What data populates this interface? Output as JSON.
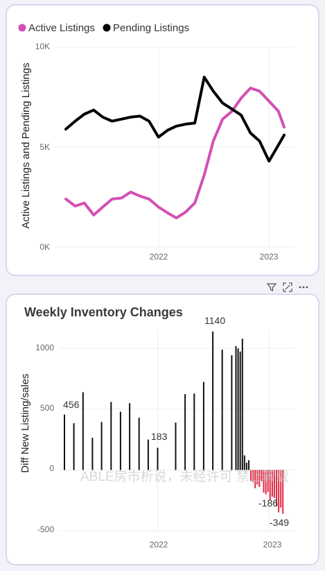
{
  "colors": {
    "active": "#d44fb4",
    "pending": "#000000",
    "positive_bar": "#111111",
    "negative_bar": "#e0273f",
    "grid": "#eeeeee",
    "tick": "#666666"
  },
  "top_chart": {
    "legend": [
      {
        "label": "Active Listings",
        "color": "#d44fb4"
      },
      {
        "label": "Pending Listings",
        "color": "#000000"
      }
    ],
    "ylabel": "Active Listings and Pending Listings",
    "yticks": [
      "0K",
      "5K",
      "10K"
    ],
    "xticks": [
      "2022",
      "2023"
    ]
  },
  "bottom_chart": {
    "title": "Weekly Inventory Changes",
    "ylabel": "Diff New Listing/sales",
    "yticks": [
      "-500",
      "0",
      "500",
      "1000"
    ],
    "xticks": [
      "2022",
      "2023"
    ],
    "data_labels": [
      "456",
      "183",
      "1140",
      "-186",
      "-349"
    ],
    "watermark": "ABLE房市析说，未经许可 禁止转载"
  },
  "toolbar": {
    "icons": [
      "filter-icon",
      "expand-icon",
      "more-options-icon"
    ]
  },
  "chart_data": [
    {
      "type": "line",
      "title": "",
      "xlabel": "",
      "ylabel": "Active Listings and Pending Listings",
      "ylim": [
        0,
        10000
      ],
      "x_axis": "date (weekly), 2021-03 to 2023-02",
      "series": [
        {
          "name": "Active Listings",
          "x": [
            "2021-03-01",
            "2021-04-01",
            "2021-05-01",
            "2021-06-01",
            "2021-07-01",
            "2021-08-01",
            "2021-09-01",
            "2021-10-01",
            "2021-11-01",
            "2021-12-01",
            "2022-01-01",
            "2022-02-01",
            "2022-03-01",
            "2022-04-01",
            "2022-05-01",
            "2022-06-01",
            "2022-07-01",
            "2022-08-01",
            "2022-09-01",
            "2022-10-01",
            "2022-11-01",
            "2022-12-01",
            "2023-01-01",
            "2023-02-01",
            "2023-02-20"
          ],
          "values": [
            2400,
            2050,
            2200,
            1600,
            2000,
            2400,
            2450,
            2750,
            2550,
            2400,
            2000,
            1700,
            1450,
            1750,
            2200,
            3600,
            5300,
            6400,
            6800,
            7450,
            7950,
            7800,
            7300,
            6800,
            6000
          ]
        },
        {
          "name": "Pending Listings",
          "x": [
            "2021-03-01",
            "2021-04-01",
            "2021-05-01",
            "2021-06-01",
            "2021-07-01",
            "2021-08-01",
            "2021-09-01",
            "2021-10-01",
            "2021-11-01",
            "2021-12-01",
            "2022-01-01",
            "2022-02-01",
            "2022-03-01",
            "2022-04-01",
            "2022-05-01",
            "2022-06-01",
            "2022-07-01",
            "2022-08-01",
            "2022-09-01",
            "2022-10-01",
            "2022-11-01",
            "2022-12-01",
            "2023-01-01",
            "2023-02-01",
            "2023-02-20"
          ],
          "values": [
            5900,
            6300,
            6650,
            6850,
            6500,
            6300,
            6400,
            6500,
            6550,
            6300,
            5500,
            5850,
            6050,
            6150,
            6200,
            8500,
            7800,
            7200,
            6900,
            6600,
            5700,
            5300,
            4300,
            5100,
            5600
          ]
        }
      ]
    },
    {
      "type": "bar",
      "title": "Weekly Inventory Changes",
      "xlabel": "",
      "ylabel": "Diff New Listing/sales",
      "ylim": [
        -500,
        1150
      ],
      "x_axis": "date (weekly), 2021-03 to 2023-02",
      "series": [
        {
          "name": "",
          "x": [
            "2021-03-01",
            "2021-04-01",
            "2021-05-01",
            "2021-06-01",
            "2021-07-01",
            "2021-08-01",
            "2021-09-01",
            "2021-10-01",
            "2021-11-01",
            "2021-12-01",
            "2022-01-01",
            "2022-03-01",
            "2022-04-01",
            "2022-05-01",
            "2022-06-01",
            "2022-07-01",
            "2022-08-01",
            "2022-09-01",
            "2022-09-15",
            "2022-09-22",
            "2022-09-29",
            "2022-10-06",
            "2022-10-13",
            "2022-10-20",
            "2022-10-27",
            "2022-11-03",
            "2022-11-10",
            "2022-11-17",
            "2022-11-24",
            "2022-12-01",
            "2022-12-08",
            "2022-12-15",
            "2022-12-22",
            "2022-12-29",
            "2023-01-05",
            "2023-01-12",
            "2023-01-19",
            "2023-01-26",
            "2023-02-02",
            "2023-02-09",
            "2023-02-16"
          ],
          "values": [
            456,
            385,
            640,
            265,
            395,
            560,
            480,
            550,
            430,
            250,
            183,
            390,
            625,
            630,
            725,
            1140,
            990,
            945,
            1020,
            1000,
            975,
            1080,
            120,
            60,
            80,
            -90,
            -100,
            -150,
            -120,
            -140,
            -95,
            -186,
            -200,
            -180,
            -250,
            -220,
            -230,
            -300,
            -349,
            -310,
            -360
          ]
        }
      ]
    }
  ]
}
